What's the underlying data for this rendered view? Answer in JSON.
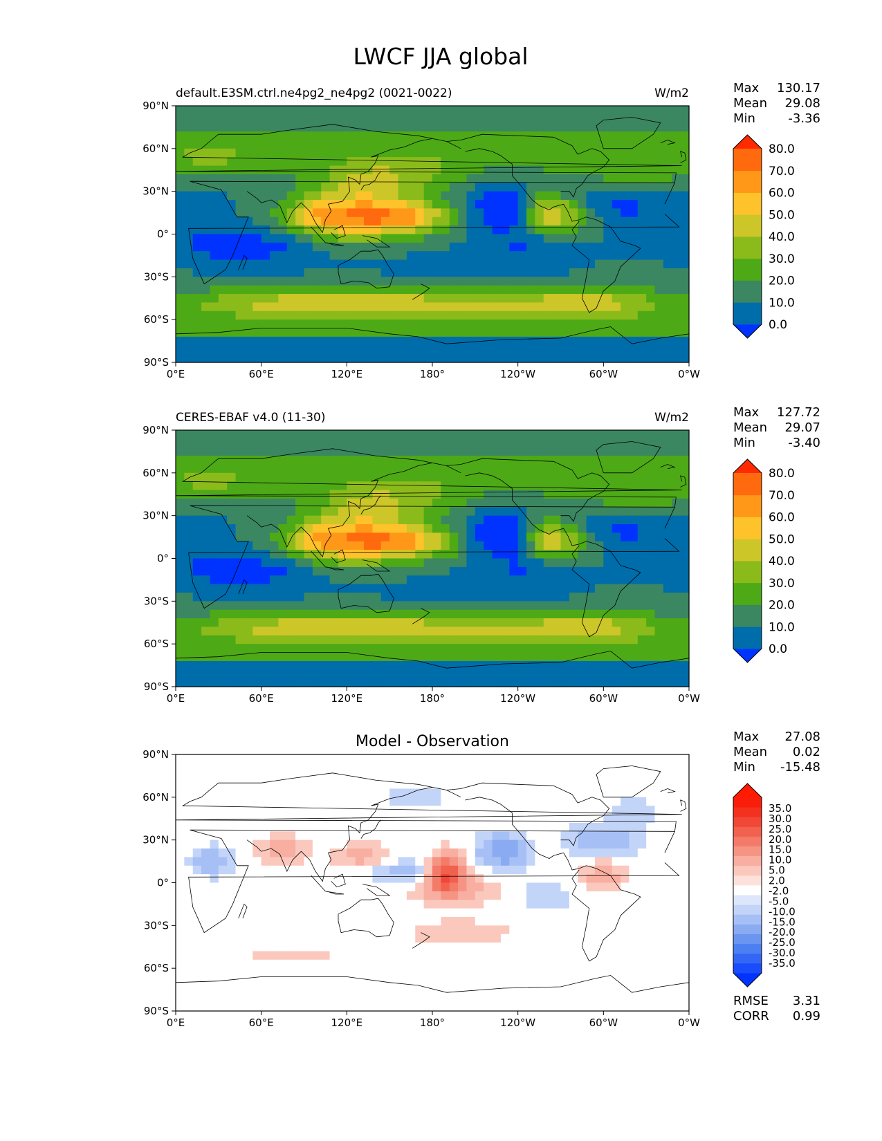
{
  "figure": {
    "title": "LWCF JJA global"
  },
  "colors": {
    "main_levels": [
      "#0033ff",
      "#006dab",
      "#3a8762",
      "#4daa16",
      "#8bbb1a",
      "#cdc628",
      "#fec22a",
      "#ff9818",
      "#ff6a0e",
      "#ff2a00"
    ],
    "diff_levels": [
      "#0033ff",
      "#1a4cfb",
      "#3366f5",
      "#4c7ff1",
      "#6a95f0",
      "#8aaaf2",
      "#a6c0f6",
      "#c3d4f9",
      "#dde6fb",
      "#ffffff",
      "#fde2dc",
      "#fbc8bd",
      "#f8aea0",
      "#f69484",
      "#f47a69",
      "#f2604e",
      "#f04736",
      "#f4301f",
      "#fa1e0a",
      "#ff1a00"
    ]
  },
  "chart_data": [
    {
      "type": "heatmap",
      "title": "default.E3SM.ctrl.ne4pg2_ne4pg2 (0021-0022)",
      "units": "W/m2",
      "stats": [
        {
          "label": "Max",
          "value": "130.17"
        },
        {
          "label": "Mean",
          "value": "29.08"
        },
        {
          "label": "Min",
          "value": "-3.36"
        }
      ],
      "xlim": [
        0,
        360
      ],
      "ylim": [
        -90,
        90
      ],
      "x_ticks": [
        "0°E",
        "60°E",
        "120°E",
        "180°",
        "120°W",
        "60°W",
        "0°W"
      ],
      "y_ticks": [
        "90°N",
        "60°N",
        "30°N",
        "0°",
        "30°S",
        "60°S",
        "90°S"
      ],
      "colorbar_levels": [
        "0.0",
        "10.0",
        "20.0",
        "30.0",
        "40.0",
        "50.0",
        "60.0",
        "70.0",
        "80.0"
      ],
      "grid": false
    },
    {
      "type": "heatmap",
      "title": "CERES-EBAF v4.0 (11-30)",
      "units": "W/m2",
      "stats": [
        {
          "label": "Max",
          "value": "127.72"
        },
        {
          "label": "Mean",
          "value": "29.07"
        },
        {
          "label": "Min",
          "value": "-3.40"
        }
      ],
      "xlim": [
        0,
        360
      ],
      "ylim": [
        -90,
        90
      ],
      "x_ticks": [
        "0°E",
        "60°E",
        "120°E",
        "180°",
        "120°W",
        "60°W",
        "0°W"
      ],
      "y_ticks": [
        "90°N",
        "60°N",
        "30°N",
        "0°",
        "30°S",
        "60°S",
        "90°S"
      ],
      "colorbar_levels": [
        "0.0",
        "10.0",
        "20.0",
        "30.0",
        "40.0",
        "50.0",
        "60.0",
        "70.0",
        "80.0"
      ],
      "grid": false
    },
    {
      "type": "heatmap",
      "title": "Model - Observation",
      "units": "",
      "stats": [
        {
          "label": "Max",
          "value": "27.08"
        },
        {
          "label": "Mean",
          "value": "0.02"
        },
        {
          "label": "Min",
          "value": "-15.48"
        }
      ],
      "xlim": [
        0,
        360
      ],
      "ylim": [
        -90,
        90
      ],
      "x_ticks": [
        "0°E",
        "60°E",
        "120°E",
        "180°",
        "120°W",
        "60°W",
        "0°W"
      ],
      "y_ticks": [
        "90°N",
        "60°N",
        "30°N",
        "0°",
        "30°S",
        "60°S",
        "90°S"
      ],
      "colorbar_levels": [
        "-35.0",
        "-30.0",
        "-25.0",
        "-20.0",
        "-15.0",
        "-10.0",
        "-5.0",
        "-2.0",
        "2.0",
        "5.0",
        "10.0",
        "15.0",
        "20.0",
        "25.0",
        "30.0",
        "35.0"
      ],
      "bottom_stats": [
        {
          "label": "RMSE",
          "value": "3.31"
        },
        {
          "label": "CORR",
          "value": "0.99"
        }
      ],
      "grid": false
    }
  ]
}
